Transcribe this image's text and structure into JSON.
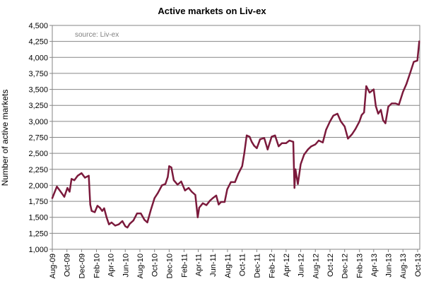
{
  "chart_data": {
    "type": "line",
    "title": "Active markets on Liv-ex",
    "ylabel": "Number of active markets",
    "xlabel": "",
    "annotation": "source: Liv-ex",
    "ylim": [
      1000,
      4500
    ],
    "y_ticks": [
      1000,
      1250,
      1500,
      1750,
      2000,
      2250,
      2500,
      2750,
      3000,
      3250,
      3500,
      3750,
      4000,
      4250,
      4500
    ],
    "y_tick_labels": [
      "1,000",
      "1,250",
      "1,500",
      "1,750",
      "2,000",
      "2,250",
      "2,500",
      "2,750",
      "3,000",
      "3,250",
      "3,500",
      "3,750",
      "4,000",
      "4,250",
      "4,500"
    ],
    "x_tick_labels": [
      "Aug-09",
      "Oct-09",
      "Dec-09",
      "Feb-10",
      "Apr-10",
      "Jun-10",
      "Aug-10",
      "Oct-10",
      "Dec-10",
      "Feb-11",
      "Apr-11",
      "Jun-11",
      "Aug-11",
      "Oct-11",
      "Dec-11",
      "Feb-12",
      "Apr-12",
      "Jun-12",
      "Aug-12",
      "Oct-12",
      "Dec-12",
      "Feb-13",
      "Apr-13",
      "Jun-13",
      "Aug-13",
      "Oct-13"
    ],
    "grid": true,
    "legend": "none",
    "line_color": "#7b1a3c",
    "x": [
      "2009-08-01",
      "2009-08-20",
      "2009-09-05",
      "2009-09-20",
      "2009-10-03",
      "2009-10-12",
      "2009-10-20",
      "2009-11-01",
      "2009-11-15",
      "2009-12-01",
      "2009-12-15",
      "2009-12-31",
      "2010-01-06",
      "2010-01-12",
      "2010-01-25",
      "2010-02-05",
      "2010-02-15",
      "2010-02-25",
      "2010-03-05",
      "2010-03-15",
      "2010-03-25",
      "2010-04-05",
      "2010-04-20",
      "2010-05-05",
      "2010-05-20",
      "2010-06-01",
      "2010-06-10",
      "2010-06-20",
      "2010-07-05",
      "2010-07-20",
      "2010-08-05",
      "2010-08-20",
      "2010-09-01",
      "2010-09-15",
      "2010-10-01",
      "2010-10-15",
      "2010-11-01",
      "2010-11-15",
      "2010-11-25",
      "2010-12-01",
      "2010-12-10",
      "2010-12-20",
      "2011-01-05",
      "2011-01-20",
      "2011-02-05",
      "2011-02-20",
      "2011-03-05",
      "2011-03-20",
      "2011-03-30",
      "2011-04-05",
      "2011-04-20",
      "2011-05-05",
      "2011-05-20",
      "2011-06-01",
      "2011-06-15",
      "2011-06-25",
      "2011-07-05",
      "2011-07-20",
      "2011-07-31",
      "2011-08-15",
      "2011-09-01",
      "2011-09-15",
      "2011-10-01",
      "2011-10-10",
      "2011-10-20",
      "2011-11-01",
      "2011-11-10",
      "2011-11-20",
      "2011-12-01",
      "2011-12-15",
      "2012-01-01",
      "2012-01-15",
      "2012-02-01",
      "2012-02-15",
      "2012-03-01",
      "2012-03-15",
      "2012-04-01",
      "2012-04-15",
      "2012-05-01",
      "2012-05-06",
      "2012-05-10",
      "2012-05-20",
      "2012-06-01",
      "2012-06-15",
      "2012-07-01",
      "2012-07-15",
      "2012-08-01",
      "2012-08-15",
      "2012-09-01",
      "2012-09-15",
      "2012-10-01",
      "2012-10-15",
      "2012-11-01",
      "2012-11-15",
      "2012-12-01",
      "2012-12-15",
      "2013-01-01",
      "2013-01-15",
      "2013-02-01",
      "2013-02-10",
      "2013-02-20",
      "2013-03-01",
      "2013-03-15",
      "2013-04-01",
      "2013-04-10",
      "2013-04-20",
      "2013-05-01",
      "2013-05-10",
      "2013-05-20",
      "2013-06-01",
      "2013-06-15",
      "2013-07-01",
      "2013-07-15",
      "2013-08-01",
      "2013-08-15",
      "2013-09-01",
      "2013-09-15",
      "2013-09-30",
      "2013-10-08"
    ],
    "values": [
      1800,
      1980,
      1900,
      1820,
      1960,
      1900,
      2100,
      2080,
      2150,
      2190,
      2120,
      2150,
      1700,
      1600,
      1580,
      1680,
      1650,
      1600,
      1640,
      1500,
      1390,
      1420,
      1370,
      1390,
      1440,
      1360,
      1340,
      1400,
      1450,
      1560,
      1560,
      1460,
      1420,
      1610,
      1800,
      1880,
      2000,
      2020,
      2130,
      2300,
      2280,
      2080,
      2010,
      2060,
      1920,
      1960,
      1900,
      1850,
      1500,
      1650,
      1720,
      1690,
      1760,
      1800,
      1840,
      1700,
      1740,
      1740,
      1940,
      2050,
      2050,
      2180,
      2300,
      2500,
      2780,
      2760,
      2680,
      2620,
      2580,
      2720,
      2740,
      2560,
      2760,
      2780,
      2610,
      2660,
      2660,
      2700,
      2680,
      1960,
      2250,
      2020,
      2330,
      2480,
      2560,
      2610,
      2640,
      2700,
      2670,
      2870,
      3000,
      3090,
      3120,
      3000,
      2920,
      2730,
      2800,
      2880,
      3000,
      3100,
      3140,
      3550,
      3450,
      3500,
      3240,
      3120,
      3180,
      3020,
      2970,
      3230,
      3280,
      3280,
      3260,
      3460,
      3580,
      3770,
      3930,
      3950,
      4250
    ]
  }
}
